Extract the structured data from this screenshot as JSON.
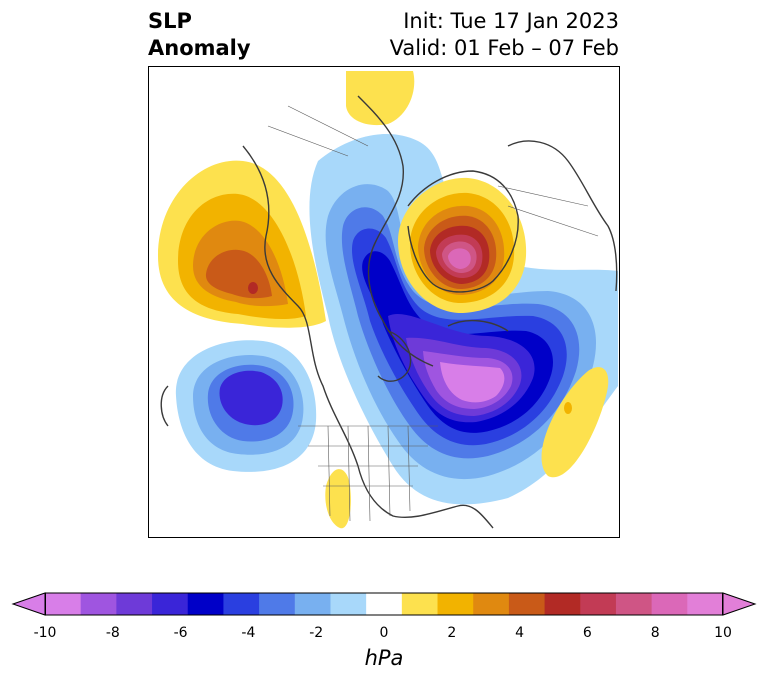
{
  "title": {
    "left_line1": "SLP",
    "left_line2": "Anomaly",
    "right_line1": "Init: Tue 17 Jan 2023",
    "right_line2": "Valid: 01 Feb – 07 Feb"
  },
  "colorbar": {
    "unit": "hPa",
    "ticks": [
      "-10",
      "-8",
      "-6",
      "-4",
      "-2",
      "0",
      "2",
      "4",
      "6",
      "8",
      "10"
    ],
    "colors": [
      "#d87ee8",
      "#9f55e0",
      "#6e3ad8",
      "#3a25d8",
      "#0000c8",
      "#2a3fe0",
      "#4f7ae8",
      "#78b0f0",
      "#a8d8fa",
      "#ffffff",
      "#fde14e",
      "#f2b300",
      "#e08910",
      "#c95a18",
      "#b22a25",
      "#c23b55",
      "#cf5585",
      "#db68b8",
      "#e27fd8"
    ],
    "extend_low_color": "#d87ee8",
    "extend_high_color": "#e27fd8"
  },
  "map": {
    "projection": "north-polar-stereographic",
    "region": "North America / Arctic / North Atlantic",
    "features": [
      {
        "name": "Gulf of Alaska ridge",
        "sign": "positive",
        "max_hpa": 5
      },
      {
        "name": "Greenland / Arctic high",
        "sign": "positive",
        "max_hpa": 9
      },
      {
        "name": "North Pacific low",
        "sign": "negative",
        "min_hpa": -6
      },
      {
        "name": "North Atlantic trough",
        "sign": "negative",
        "min_hpa": -10
      },
      {
        "name": "Eastern Atlantic ridge",
        "sign": "positive",
        "max_hpa": 3
      },
      {
        "name": "Southwest US weak ridge",
        "sign": "positive",
        "max_hpa": 1
      }
    ]
  }
}
